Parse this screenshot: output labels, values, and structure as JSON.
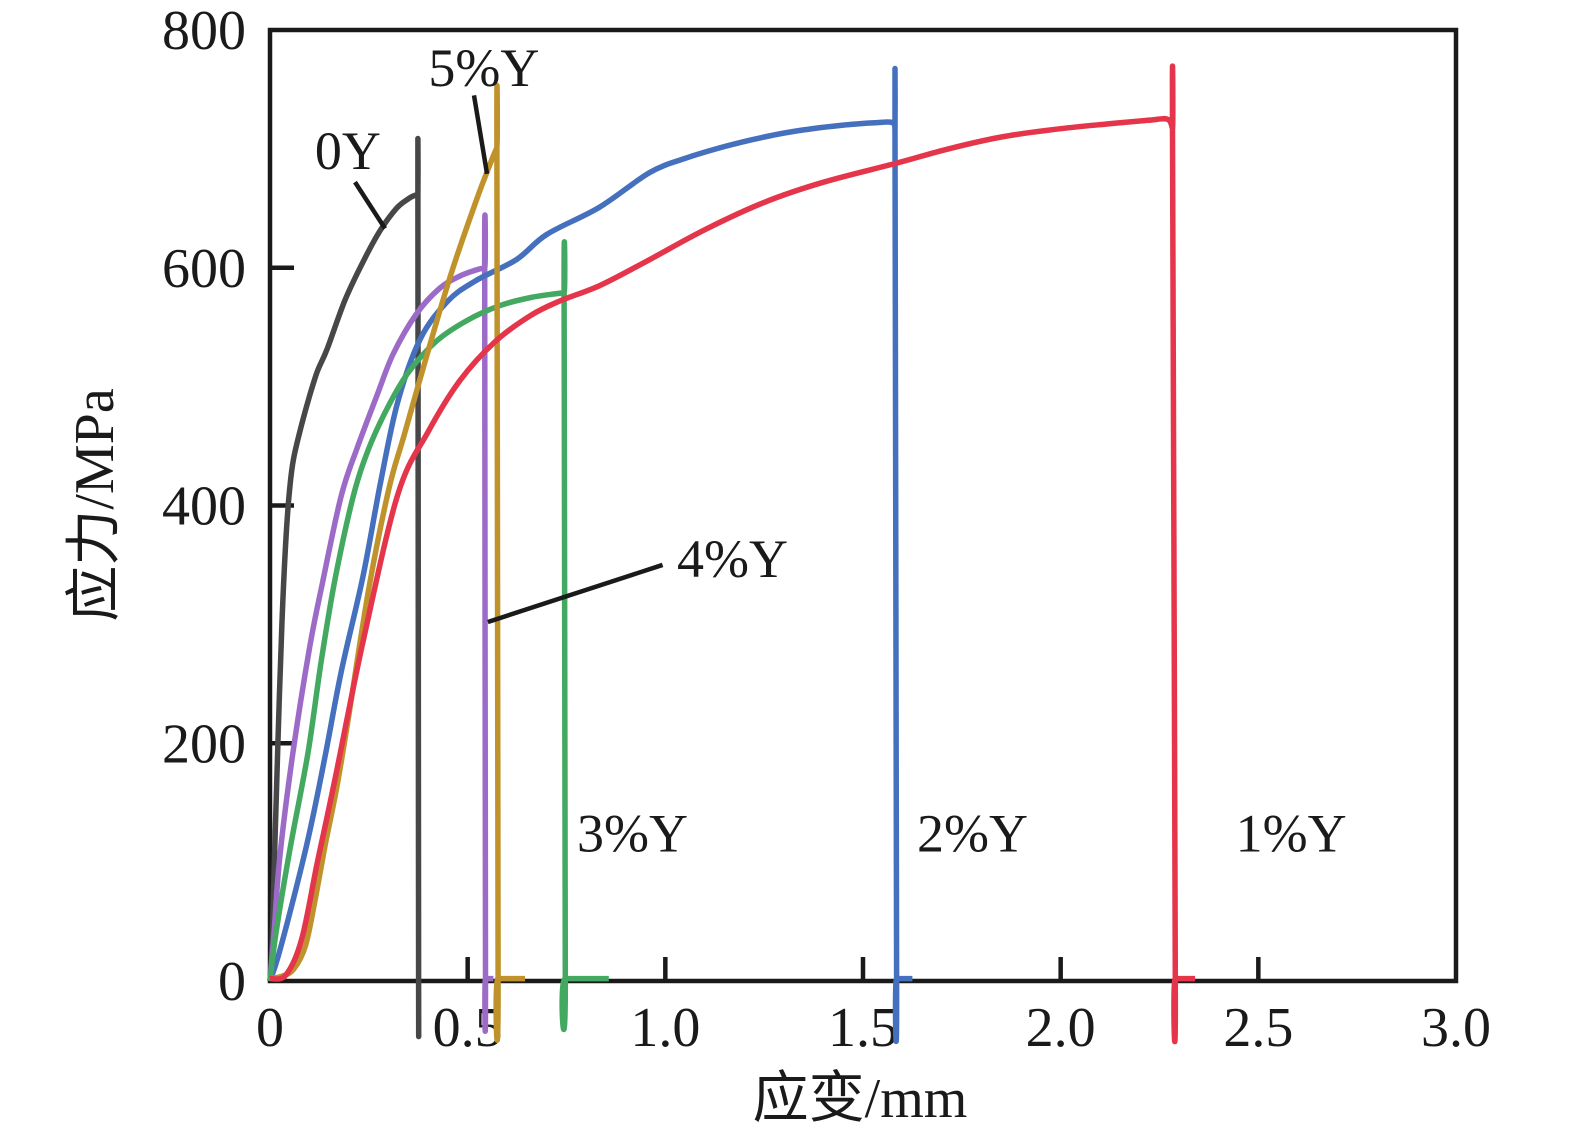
{
  "chart_data": {
    "type": "line",
    "title": "",
    "xlabel": "应变/mm",
    "ylabel": "应力/MPa",
    "xlim": [
      0,
      3.0
    ],
    "ylim": [
      0,
      800
    ],
    "x_ticks": [
      0.5,
      1.0,
      1.5,
      2.0,
      2.5
    ],
    "x_tick_labels": [
      "0",
      "0.5",
      "1.0",
      "1.5",
      "2.0",
      "2.5",
      "3.0"
    ],
    "x_tick_label_values": [
      0,
      0.5,
      1.0,
      1.5,
      2.0,
      2.5,
      3.0
    ],
    "y_ticks": [
      200,
      400,
      600
    ],
    "y_tick_labels": [
      "0",
      "200",
      "400",
      "600",
      "800"
    ],
    "y_tick_label_values": [
      0,
      200,
      400,
      600,
      800
    ],
    "grid": false,
    "legend_position": "inline-annotations",
    "background": "#ffffff",
    "axis_color": "#1a1a1a",
    "series": [
      {
        "name": "0Y",
        "color": "#474749",
        "peak_stress_mpa": 661,
        "fracture_strain_mm": 0.376,
        "points": [
          [
            0,
            0
          ],
          [
            0.005,
            30
          ],
          [
            0.012,
            110
          ],
          [
            0.02,
            200
          ],
          [
            0.03,
            300
          ],
          [
            0.04,
            370
          ],
          [
            0.05,
            415
          ],
          [
            0.06,
            440
          ],
          [
            0.08,
            468
          ],
          [
            0.1,
            492
          ],
          [
            0.12,
            513
          ],
          [
            0.145,
            532
          ],
          [
            0.19,
            573
          ],
          [
            0.24,
            608
          ],
          [
            0.28,
            632
          ],
          [
            0.32,
            650
          ],
          [
            0.35,
            658
          ],
          [
            0.368,
            661
          ],
          [
            0.374,
            660
          ],
          [
            0.374,
            660
          ],
          [
            0.376,
            2
          ],
          [
            0.376,
            2
          ]
        ],
        "annotation": {
          "label": "0Y",
          "x": 0.197,
          "y": 699,
          "leader": [
            [
              0.215,
              672
            ],
            [
              0.291,
              633
            ]
          ]
        }
      },
      {
        "name": "4%Y",
        "color": "#9c6bc7",
        "peak_stress_mpa": 600,
        "fracture_strain_mm": 0.545,
        "points": [
          [
            0,
            0
          ],
          [
            0.01,
            40
          ],
          [
            0.025,
            105
          ],
          [
            0.058,
            192
          ],
          [
            0.1,
            280
          ],
          [
            0.134,
            337
          ],
          [
            0.18,
            408
          ],
          [
            0.22,
            448
          ],
          [
            0.27,
            492
          ],
          [
            0.311,
            527
          ],
          [
            0.37,
            561
          ],
          [
            0.43,
            583
          ],
          [
            0.48,
            593
          ],
          [
            0.52,
            598
          ],
          [
            0.543,
            600
          ],
          [
            0.543,
            600
          ],
          [
            0.545,
            2
          ],
          [
            0.545,
            2
          ],
          [
            0.565,
            2
          ]
        ],
        "annotation": {
          "label": "4%Y",
          "x": 1.17,
          "y": 356,
          "leader": [
            [
              0.993,
              350
            ],
            [
              0.551,
              302
            ]
          ]
        }
      },
      {
        "name": "2%Y",
        "color": "#4470bd",
        "peak_stress_mpa": 722,
        "fracture_strain_mm": 1.585,
        "points": [
          [
            0,
            0
          ],
          [
            0.02,
            20
          ],
          [
            0.06,
            70
          ],
          [
            0.1,
            125
          ],
          [
            0.14,
            190
          ],
          [
            0.18,
            260
          ],
          [
            0.235,
            340
          ],
          [
            0.28,
            420
          ],
          [
            0.323,
            487
          ],
          [
            0.38,
            540
          ],
          [
            0.45,
            572
          ],
          [
            0.52,
            589
          ],
          [
            0.624,
            607
          ],
          [
            0.7,
            628
          ],
          [
            0.834,
            651
          ],
          [
            0.96,
            680
          ],
          [
            1.05,
            692
          ],
          [
            1.15,
            702
          ],
          [
            1.25,
            710
          ],
          [
            1.35,
            716
          ],
          [
            1.45,
            720
          ],
          [
            1.53,
            722
          ],
          [
            1.575,
            722
          ],
          [
            1.581,
            715
          ],
          [
            1.581,
            715
          ],
          [
            1.585,
            2
          ],
          [
            1.585,
            2
          ],
          [
            1.625,
            2
          ]
        ],
        "annotation": {
          "label": "2%Y",
          "x": 1.777,
          "y": 125,
          "leader": null
        }
      },
      {
        "name": "3%Y",
        "color": "#43a860",
        "peak_stress_mpa": 579,
        "fracture_strain_mm": 0.747,
        "points": [
          [
            0,
            0
          ],
          [
            0.015,
            40
          ],
          [
            0.05,
            110
          ],
          [
            0.096,
            192
          ],
          [
            0.13,
            270
          ],
          [
            0.164,
            337
          ],
          [
            0.21,
            407
          ],
          [
            0.25,
            448
          ],
          [
            0.3,
            484
          ],
          [
            0.35,
            512
          ],
          [
            0.42,
            538
          ],
          [
            0.5,
            556
          ],
          [
            0.58,
            568
          ],
          [
            0.66,
            575
          ],
          [
            0.72,
            578
          ],
          [
            0.744,
            579
          ],
          [
            0.744,
            579
          ],
          [
            0.747,
            2
          ],
          [
            0.747,
            2
          ],
          [
            0.857,
            2
          ]
        ],
        "annotation": {
          "label": "3%Y",
          "x": 0.917,
          "y": 125,
          "leader": null
        }
      },
      {
        "name": "5%Y",
        "color": "#c0922b",
        "peak_stress_mpa": 701,
        "fracture_strain_mm": 0.577,
        "points": [
          [
            0,
            2
          ],
          [
            0.03,
            4
          ],
          [
            0.06,
            10
          ],
          [
            0.09,
            30
          ],
          [
            0.115,
            70
          ],
          [
            0.14,
            115
          ],
          [
            0.17,
            165
          ],
          [
            0.2,
            225
          ],
          [
            0.25,
            330
          ],
          [
            0.3,
            413
          ],
          [
            0.34,
            460
          ],
          [
            0.4,
            530
          ],
          [
            0.46,
            597
          ],
          [
            0.52,
            655
          ],
          [
            0.56,
            690
          ],
          [
            0.574,
            701
          ],
          [
            0.574,
            701
          ],
          [
            0.577,
            2
          ],
          [
            0.577,
            2
          ],
          [
            0.645,
            2
          ]
        ],
        "annotation": {
          "label": "5%Y",
          "x": 0.541,
          "y": 769,
          "leader": [
            [
              0.516,
              745
            ],
            [
              0.549,
              679
            ]
          ]
        }
      },
      {
        "name": "1%Y",
        "color": "#e5354a",
        "peak_stress_mpa": 725,
        "fracture_strain_mm": 2.29,
        "points": [
          [
            0,
            2
          ],
          [
            0.04,
            5
          ],
          [
            0.08,
            35
          ],
          [
            0.12,
            100
          ],
          [
            0.164,
            169
          ],
          [
            0.235,
            285
          ],
          [
            0.323,
            409
          ],
          [
            0.4,
            462
          ],
          [
            0.48,
            505
          ],
          [
            0.57,
            538
          ],
          [
            0.66,
            560
          ],
          [
            0.733,
            572
          ],
          [
            0.834,
            585
          ],
          [
            0.95,
            605
          ],
          [
            1.1,
            632
          ],
          [
            1.25,
            655
          ],
          [
            1.4,
            672
          ],
          [
            1.585,
            688
          ],
          [
            1.716,
            700
          ],
          [
            1.85,
            710
          ],
          [
            2.0,
            717
          ],
          [
            2.12,
            721
          ],
          [
            2.22,
            724
          ],
          [
            2.27,
            725
          ],
          [
            2.283,
            717
          ],
          [
            2.283,
            717
          ],
          [
            2.29,
            2
          ],
          [
            2.29,
            2
          ],
          [
            2.34,
            2
          ]
        ],
        "annotation": {
          "label": "1%Y",
          "x": 2.583,
          "y": 125,
          "leader": null
        }
      }
    ]
  }
}
